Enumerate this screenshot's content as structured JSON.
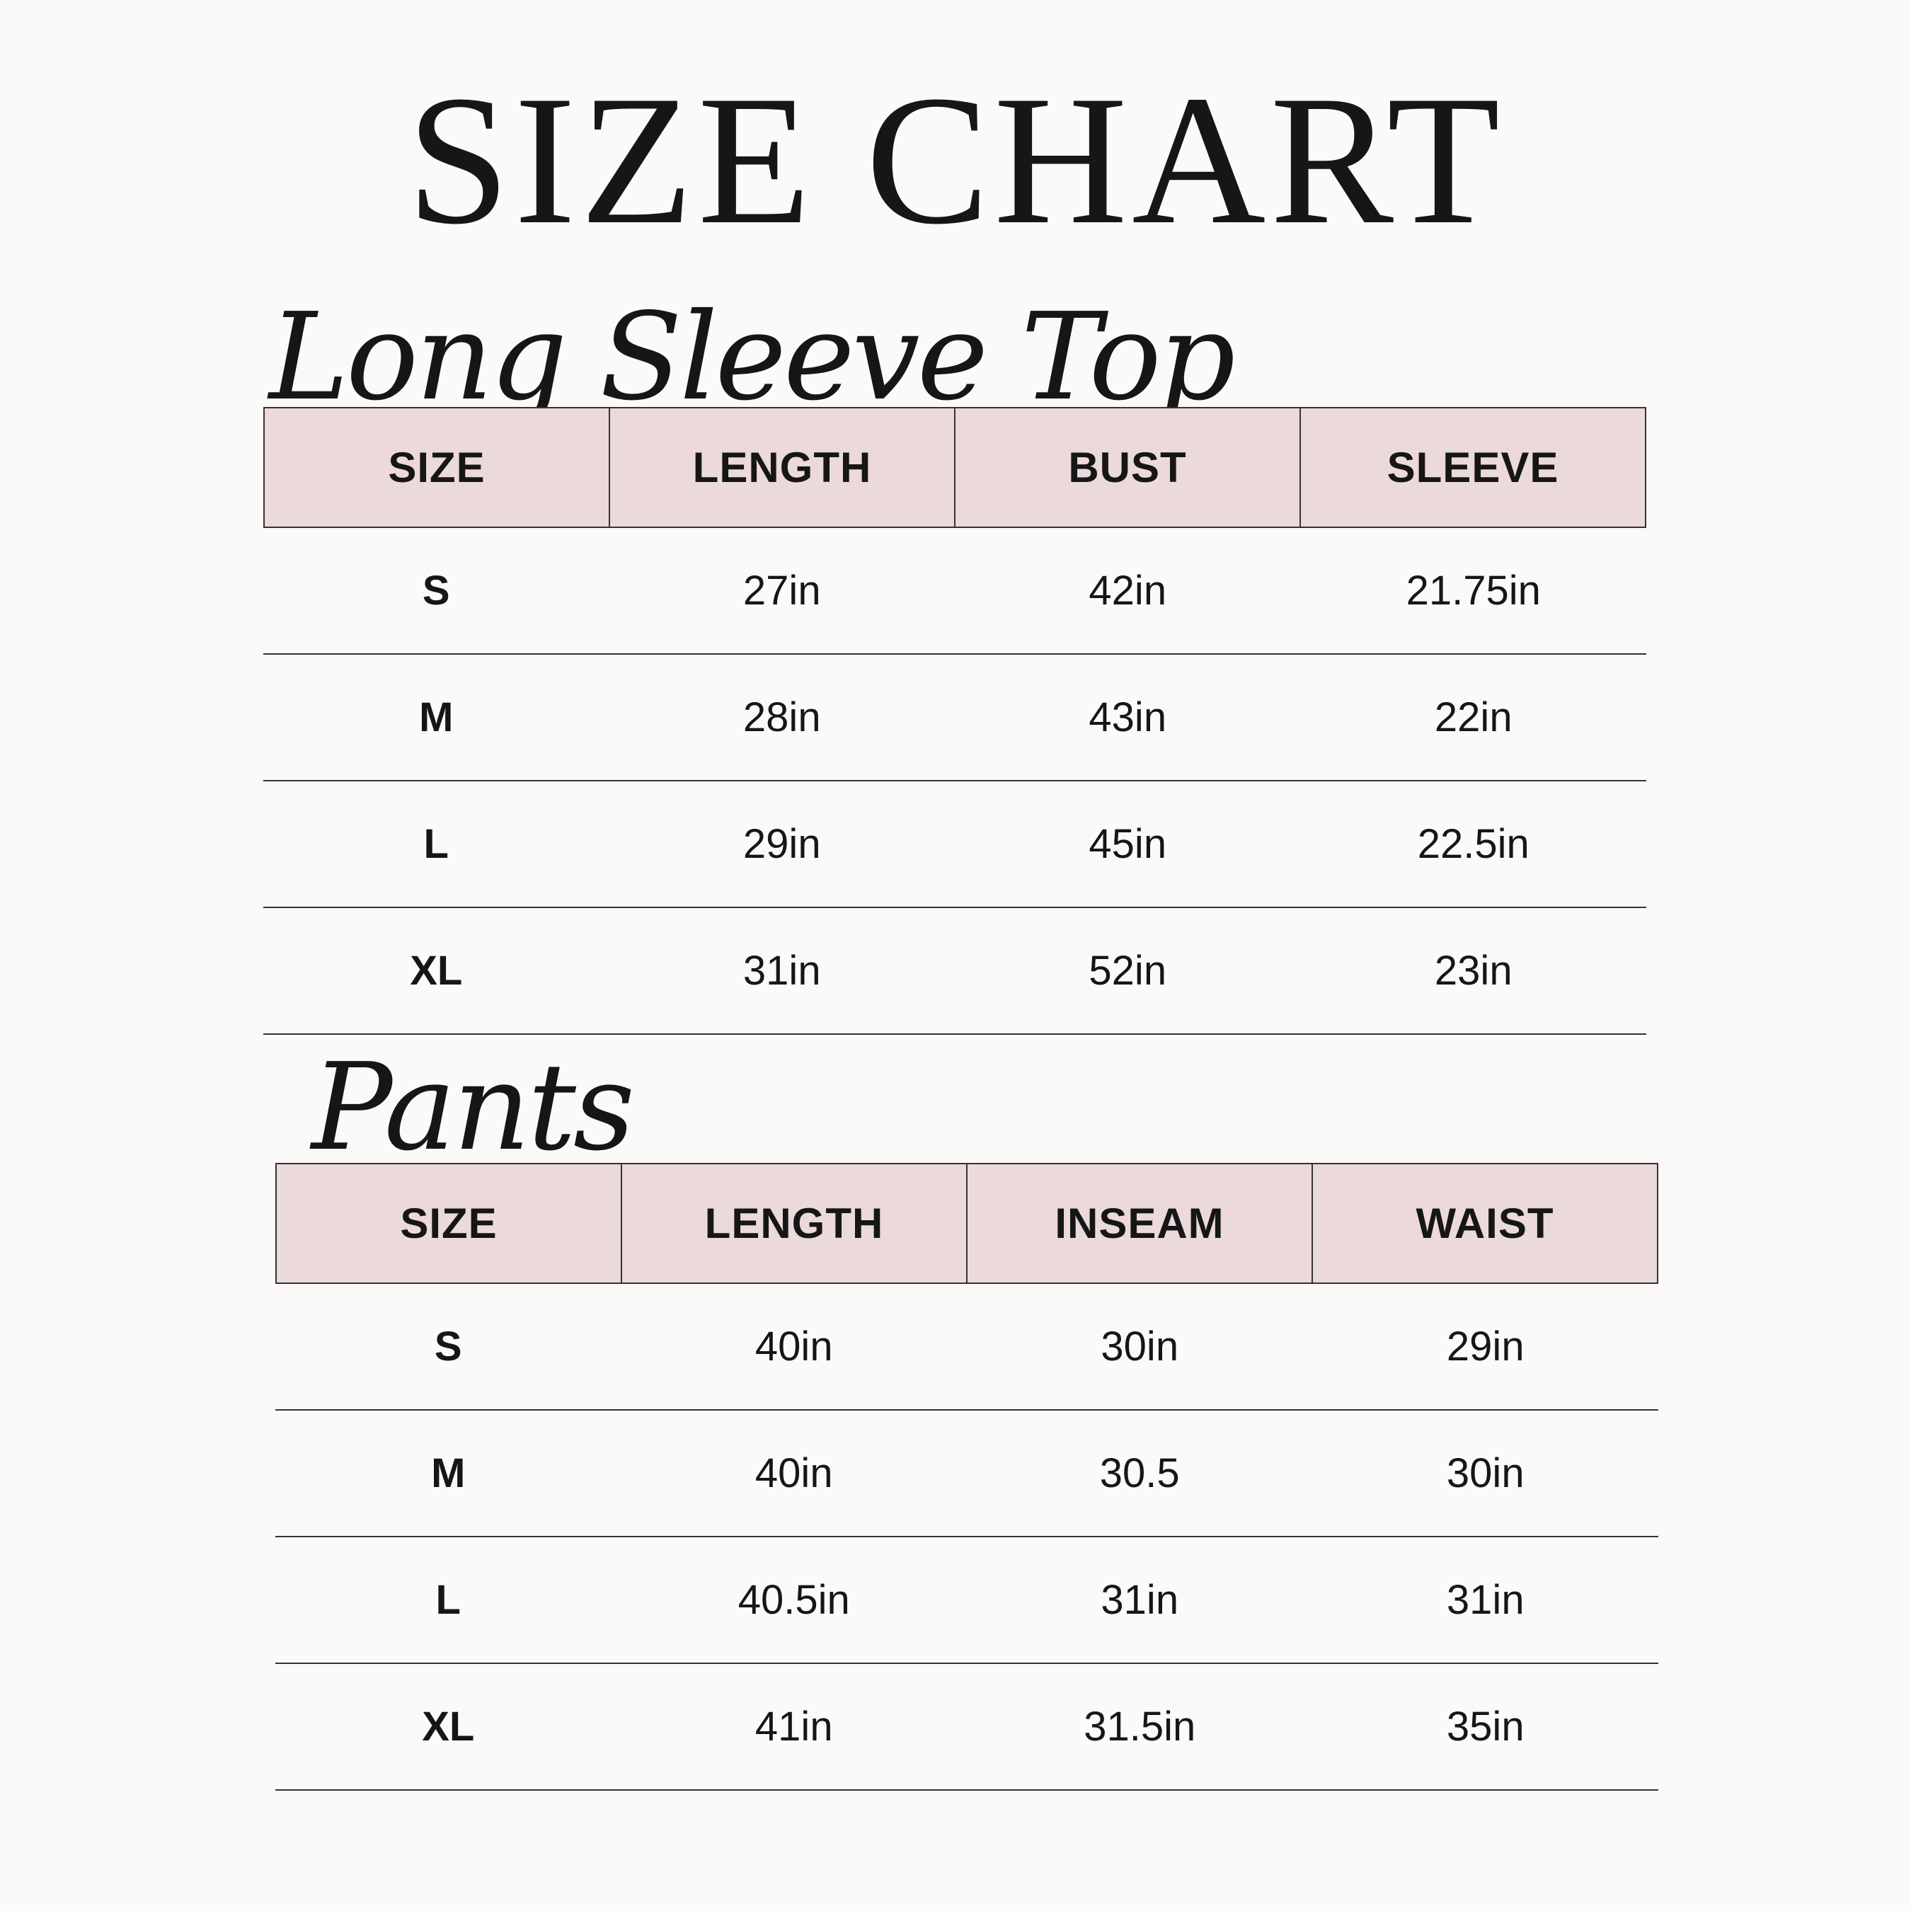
{
  "title": "SIZE CHART",
  "tops": {
    "heading": "Long Sleeve Top",
    "columns": [
      "SIZE",
      "LENGTH",
      "BUST",
      "SLEEVE"
    ],
    "rows": [
      [
        "S",
        "27in",
        "42in",
        "21.75in"
      ],
      [
        "M",
        "28in",
        "43in",
        "22in"
      ],
      [
        "L",
        "29in",
        "45in",
        "22.5in"
      ],
      [
        "XL",
        "31in",
        "52in",
        "23in"
      ]
    ]
  },
  "pants": {
    "heading": "Pants",
    "columns": [
      "SIZE",
      "LENGTH",
      "INSEAM",
      "WAIST"
    ],
    "rows": [
      [
        "S",
        "40in",
        "30in",
        "29in"
      ],
      [
        "M",
        "40in",
        "30.5",
        "30in"
      ],
      [
        "L",
        "40.5in",
        "31in",
        "31in"
      ],
      [
        "XL",
        "41in",
        "31.5in",
        "35in"
      ]
    ]
  },
  "colors": {
    "header_fill": "#ecd9da",
    "background": "#fbfaf8"
  }
}
